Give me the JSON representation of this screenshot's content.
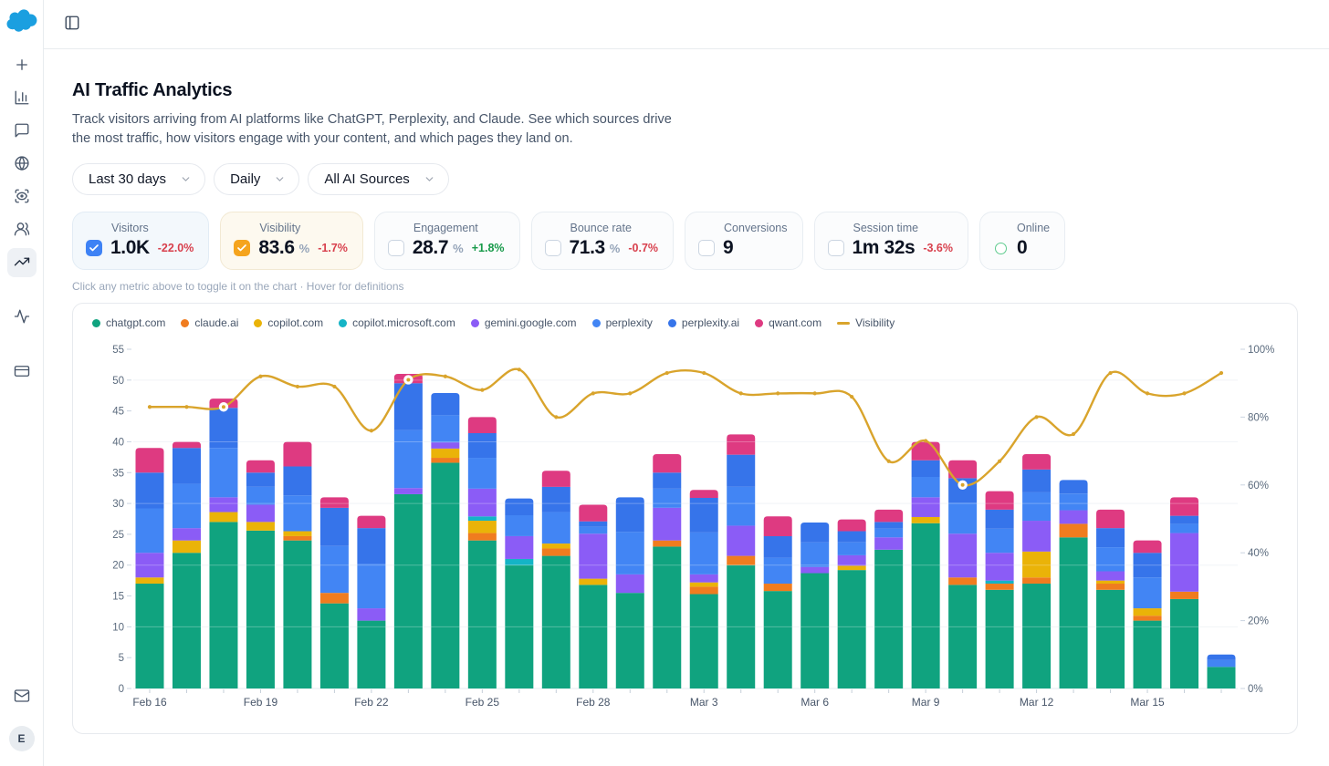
{
  "app": {
    "avatar_initial": "E"
  },
  "topbar": {
    "toggle": "sidebar-toggle"
  },
  "sidebar": {
    "items": [
      "new",
      "reports",
      "messages",
      "web",
      "scan",
      "audience",
      "trends",
      "activity",
      "billing"
    ],
    "active_item": "trends",
    "bottom_items": [
      "mail",
      "account"
    ]
  },
  "header": {
    "title": "AI Traffic Analytics",
    "description": "Track visitors arriving from AI platforms like ChatGPT, Perplexity, and Claude. See which sources drive the most traffic, how visitors engage with your content, and which pages they land on."
  },
  "filters": [
    {
      "label": "Last 30 days"
    },
    {
      "label": "Daily"
    },
    {
      "label": "All AI Sources"
    }
  ],
  "metrics": [
    {
      "label": "Visitors",
      "value": "1.0K",
      "unit": "",
      "delta": "-22.0%",
      "delta_dir": "down",
      "state": "checked",
      "accent": "#3e82f5",
      "bg": "#f3f8fc",
      "border": "#e2ecf5"
    },
    {
      "label": "Visibility",
      "value": "83.6",
      "unit": "%",
      "delta": "-1.7%",
      "delta_dir": "down",
      "state": "checked",
      "accent": "#f5a41d",
      "bg": "#fdf9ef",
      "border": "#f2e9d3"
    },
    {
      "label": "Engagement",
      "value": "28.7",
      "unit": "%",
      "delta": "+1.8%",
      "delta_dir": "up",
      "state": "unchecked"
    },
    {
      "label": "Bounce rate",
      "value": "71.3",
      "unit": "%",
      "delta": "-0.7%",
      "delta_dir": "down",
      "state": "unchecked"
    },
    {
      "label": "Conversions",
      "value": "9",
      "unit": "",
      "delta": "",
      "delta_dir": "",
      "state": "unchecked"
    },
    {
      "label": "Session time",
      "value": "1m 32s",
      "unit": "",
      "delta": "-3.6%",
      "delta_dir": "down",
      "state": "unchecked"
    },
    {
      "label": "Online",
      "value": "0",
      "unit": "",
      "delta": "",
      "delta_dir": "",
      "state": "circle"
    }
  ],
  "hint": "Click any metric above to toggle it on the chart · Hover for definitions",
  "chart_data": {
    "type": "bar",
    "subtype": "stacked-bars-with-line",
    "x": [
      "Feb 16",
      "Feb 17",
      "Feb 18",
      "Feb 19",
      "Feb 20",
      "Feb 21",
      "Feb 22",
      "Feb 23",
      "Feb 24",
      "Feb 25",
      "Feb 26",
      "Feb 27",
      "Feb 28",
      "Mar 1",
      "Mar 2",
      "Mar 3",
      "Mar 4",
      "Mar 5",
      "Mar 6",
      "Mar 7",
      "Mar 8",
      "Mar 9",
      "Mar 10",
      "Mar 11",
      "Mar 12",
      "Mar 13",
      "Mar 14",
      "Mar 15",
      "Mar 16",
      "Mar 17"
    ],
    "x_label_every": 3,
    "left_axis": {
      "min": 0,
      "max": 55,
      "tick_step": 5,
      "grid_step": 10
    },
    "right_axis": {
      "min": 0,
      "max": 100,
      "tick_step": 20,
      "unit": "%"
    },
    "series": [
      {
        "name": "chatgpt.com",
        "color": "#10a37f",
        "values": [
          17,
          22,
          27,
          25.6,
          24,
          13.8,
          11,
          31.5,
          36.6,
          24,
          20,
          21.5,
          16.8,
          15.5,
          23,
          15.3,
          20,
          15.8,
          18.7,
          19.2,
          22.5,
          26.8,
          16.8,
          16,
          17,
          24.5,
          16,
          11,
          14.5,
          3.5
        ]
      },
      {
        "name": "claude.ai",
        "color": "#f07c1f",
        "values": [
          0,
          0,
          0,
          0,
          0.7,
          1.7,
          0,
          0,
          0.8,
          1.2,
          0,
          1.2,
          0,
          0,
          1,
          1.2,
          1.5,
          1.2,
          0,
          0,
          0,
          0,
          1.2,
          1,
          1,
          2.2,
          1,
          0.8,
          1.2,
          0
        ]
      },
      {
        "name": "copilot.com",
        "color": "#eab308",
        "values": [
          1,
          2,
          1.6,
          1.4,
          0.8,
          0,
          0,
          0,
          1.5,
          2,
          0,
          0.8,
          1,
          0,
          0,
          0.7,
          0,
          0,
          0,
          0.7,
          0,
          1,
          0,
          0,
          4.2,
          0,
          0.5,
          1.2,
          0,
          0
        ]
      },
      {
        "name": "copilot.microsoft.com",
        "color": "#14b4c6",
        "values": [
          0,
          0,
          0,
          0,
          0,
          0,
          0,
          0,
          0,
          0.7,
          1,
          0,
          0,
          0,
          0,
          0,
          0,
          0,
          0,
          0,
          0,
          0,
          0,
          0.5,
          0,
          0,
          0,
          0,
          0,
          0
        ]
      },
      {
        "name": "gemini.google.com",
        "color": "#8b5cf6",
        "values": [
          4,
          2,
          2.4,
          2.8,
          0,
          0,
          2,
          1,
          1,
          4.5,
          3.7,
          0,
          7.3,
          3,
          5.3,
          1.3,
          4.9,
          0,
          1,
          1.7,
          2,
          3.2,
          7.1,
          4.5,
          5,
          2.2,
          1.5,
          0,
          9.5,
          0
        ]
      },
      {
        "name": "perplexity",
        "color": "#4285f4",
        "values": [
          7.2,
          7.2,
          8,
          2.9,
          5.8,
          7.6,
          7.2,
          9.4,
          4.4,
          5,
          3.4,
          5.1,
          1.1,
          6.9,
          3.1,
          6.8,
          6.3,
          4.2,
          4,
          2.1,
          1.4,
          3.3,
          5,
          3.9,
          4.6,
          2.7,
          3.9,
          5,
          1.5,
          1.1
        ]
      },
      {
        "name": "perplexity.ai",
        "color": "#3674ea",
        "values": [
          5.8,
          5.8,
          6.5,
          2.3,
          4.7,
          6.2,
          5.8,
          7.6,
          3.6,
          4,
          2.7,
          4.1,
          0.9,
          5.6,
          2.6,
          5.6,
          5.2,
          3.5,
          3.2,
          1.8,
          1.1,
          2.7,
          4,
          3.1,
          3.7,
          2.2,
          3.1,
          4,
          1.3,
          0.9
        ]
      },
      {
        "name": "qwant.com",
        "color": "#de3a81",
        "values": [
          4,
          1,
          1.5,
          2,
          4,
          1.7,
          2,
          1.5,
          0,
          2.6,
          0,
          2.6,
          2.7,
          0,
          3,
          1.3,
          3.3,
          3.2,
          0,
          1.9,
          2,
          3,
          2.9,
          3,
          2.5,
          0,
          3,
          2,
          3,
          0
        ]
      }
    ],
    "line_series": {
      "name": "Visibility",
      "color": "#d9a42c",
      "axis": "right",
      "unit": "%",
      "values": [
        83,
        83,
        83,
        92,
        89,
        89,
        76,
        91,
        92,
        88,
        94,
        80,
        87,
        87,
        93,
        93,
        87,
        87,
        87,
        86,
        67,
        73,
        60,
        67,
        80,
        75,
        93,
        87,
        87,
        93
      ],
      "highlight_points": [
        "Feb 18",
        "Feb 23",
        "Mar 10"
      ]
    },
    "grid": true,
    "legend_position": "top-left"
  }
}
